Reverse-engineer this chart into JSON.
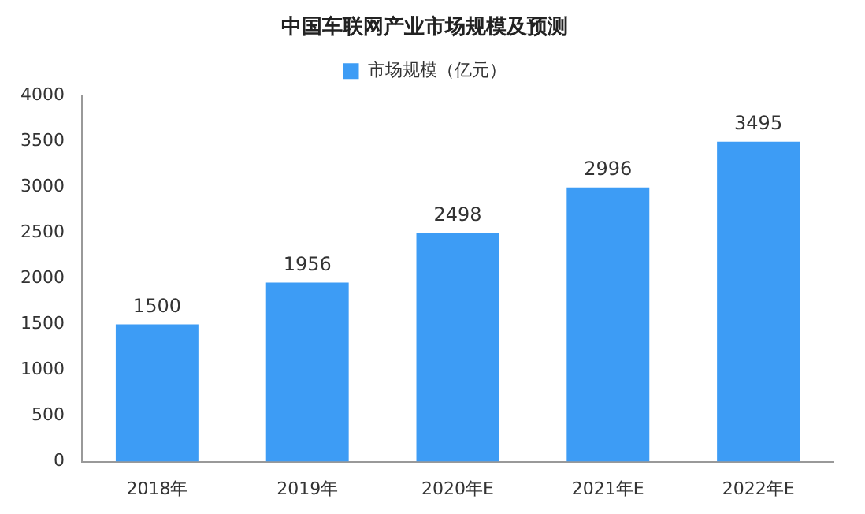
{
  "chart_data": {
    "type": "bar",
    "title": "中国车联网产业市场规模及预测",
    "categories": [
      "2018年",
      "2019年",
      "2020年E",
      "2021年E",
      "2022年E"
    ],
    "series": [
      {
        "name": "市场规模（亿元）",
        "color": "#3d9cf5",
        "values": [
          1500,
          1956,
          2498,
          2996,
          3495
        ]
      }
    ],
    "ylim": [
      0,
      4000
    ],
    "yticks": [
      0,
      500,
      1000,
      1500,
      2000,
      2500,
      3000,
      3500,
      4000
    ],
    "grid": false,
    "legend": "top",
    "data_labels": true
  }
}
